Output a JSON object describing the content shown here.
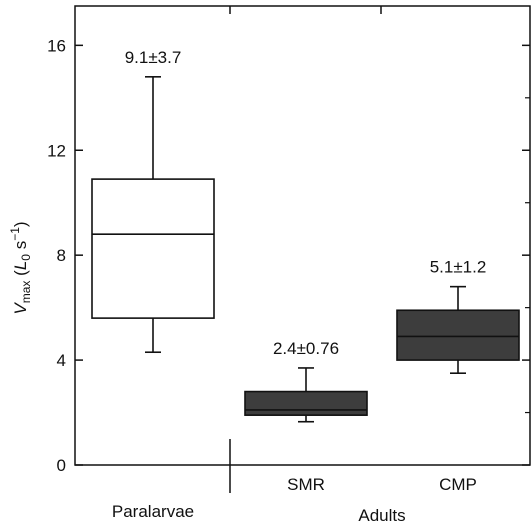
{
  "chart_data": {
    "type": "boxplot",
    "ylabel": {
      "main": "V",
      "sub": "max",
      "open": " (",
      "var": "L",
      "var_sub": "0",
      "unit": " s",
      "exp": "−1",
      "close": ")"
    },
    "ylim": [
      0,
      17.5
    ],
    "yticks": [
      0,
      4,
      8,
      12,
      16
    ],
    "ytick_labels": [
      "0",
      "4",
      "8",
      "12",
      "16"
    ],
    "groups": [
      {
        "label": "Paralarvae",
        "categories": [
          "Paralarvae"
        ]
      },
      {
        "label": "Adults",
        "categories": [
          "SMR",
          "CMP"
        ]
      }
    ],
    "categories": [
      "Paralarvae",
      "SMR",
      "CMP"
    ],
    "show_category_labels": [
      false,
      true,
      true
    ],
    "boxes": [
      {
        "category": "Paralarvae",
        "whisker_low": 4.3,
        "q1": 5.6,
        "median": 8.8,
        "q3": 10.9,
        "whisker_high": 14.8,
        "annotation": "9.1±3.7",
        "fill": "#ffffff"
      },
      {
        "category": "SMR",
        "whisker_low": 1.65,
        "q1": 1.9,
        "median": 2.1,
        "q3": 2.8,
        "whisker_high": 3.7,
        "annotation": "2.4±0.76",
        "fill": "#3d3d3d"
      },
      {
        "category": "CMP",
        "whisker_low": 3.5,
        "q1": 4.0,
        "median": 4.9,
        "q3": 5.9,
        "whisker_high": 6.8,
        "annotation": "5.1±1.2",
        "fill": "#3d3d3d"
      }
    ],
    "grid": false,
    "legend": "none"
  }
}
